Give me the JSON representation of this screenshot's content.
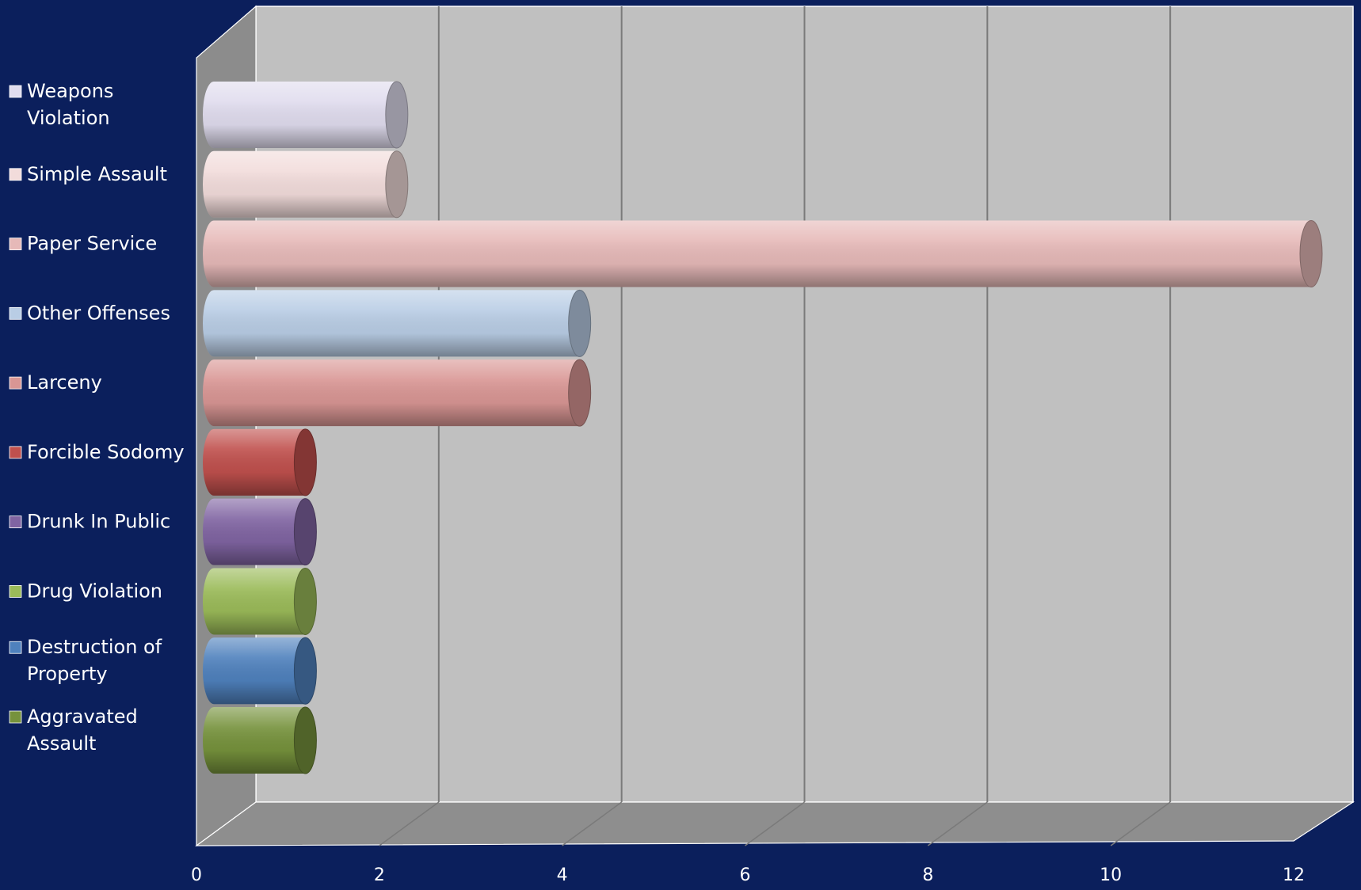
{
  "chart_data": {
    "type": "bar",
    "orientation": "horizontal",
    "style": "3d-cylinder",
    "categories": [
      "Aggravated Assault",
      "Destruction of Property",
      "Drug Violation",
      "Drunk In Public",
      "Forcible Sodomy",
      "Larceny",
      "Other Offenses",
      "Paper Service",
      "Simple Assault",
      "Weapons Violation"
    ],
    "legend_lines": [
      [
        "Aggravated",
        "Assault"
      ],
      [
        "Destruction of",
        "Property"
      ],
      [
        "Drug Violation"
      ],
      [
        "Drunk In Public"
      ],
      [
        "Forcible Sodomy"
      ],
      [
        "Larceny"
      ],
      [
        "Other Offenses"
      ],
      [
        "Paper Service"
      ],
      [
        "Simple Assault"
      ],
      [
        "Weapons",
        "Violation"
      ]
    ],
    "values": [
      1,
      1,
      1,
      1,
      1,
      4,
      4,
      12,
      2,
      2
    ],
    "colors": [
      "#76923c",
      "#4f81bd",
      "#9bbb59",
      "#8064a2",
      "#c0504d",
      "#d99694",
      "#b9cde5",
      "#e6b9b8",
      "#f2dcdb",
      "#e0dcee"
    ],
    "x_ticks": [
      "0",
      "2",
      "4",
      "6",
      "8",
      "10",
      "12"
    ],
    "xlim": [
      0,
      12
    ],
    "grid": true,
    "legend": "left",
    "title": "",
    "xlabel": "",
    "ylabel": ""
  }
}
